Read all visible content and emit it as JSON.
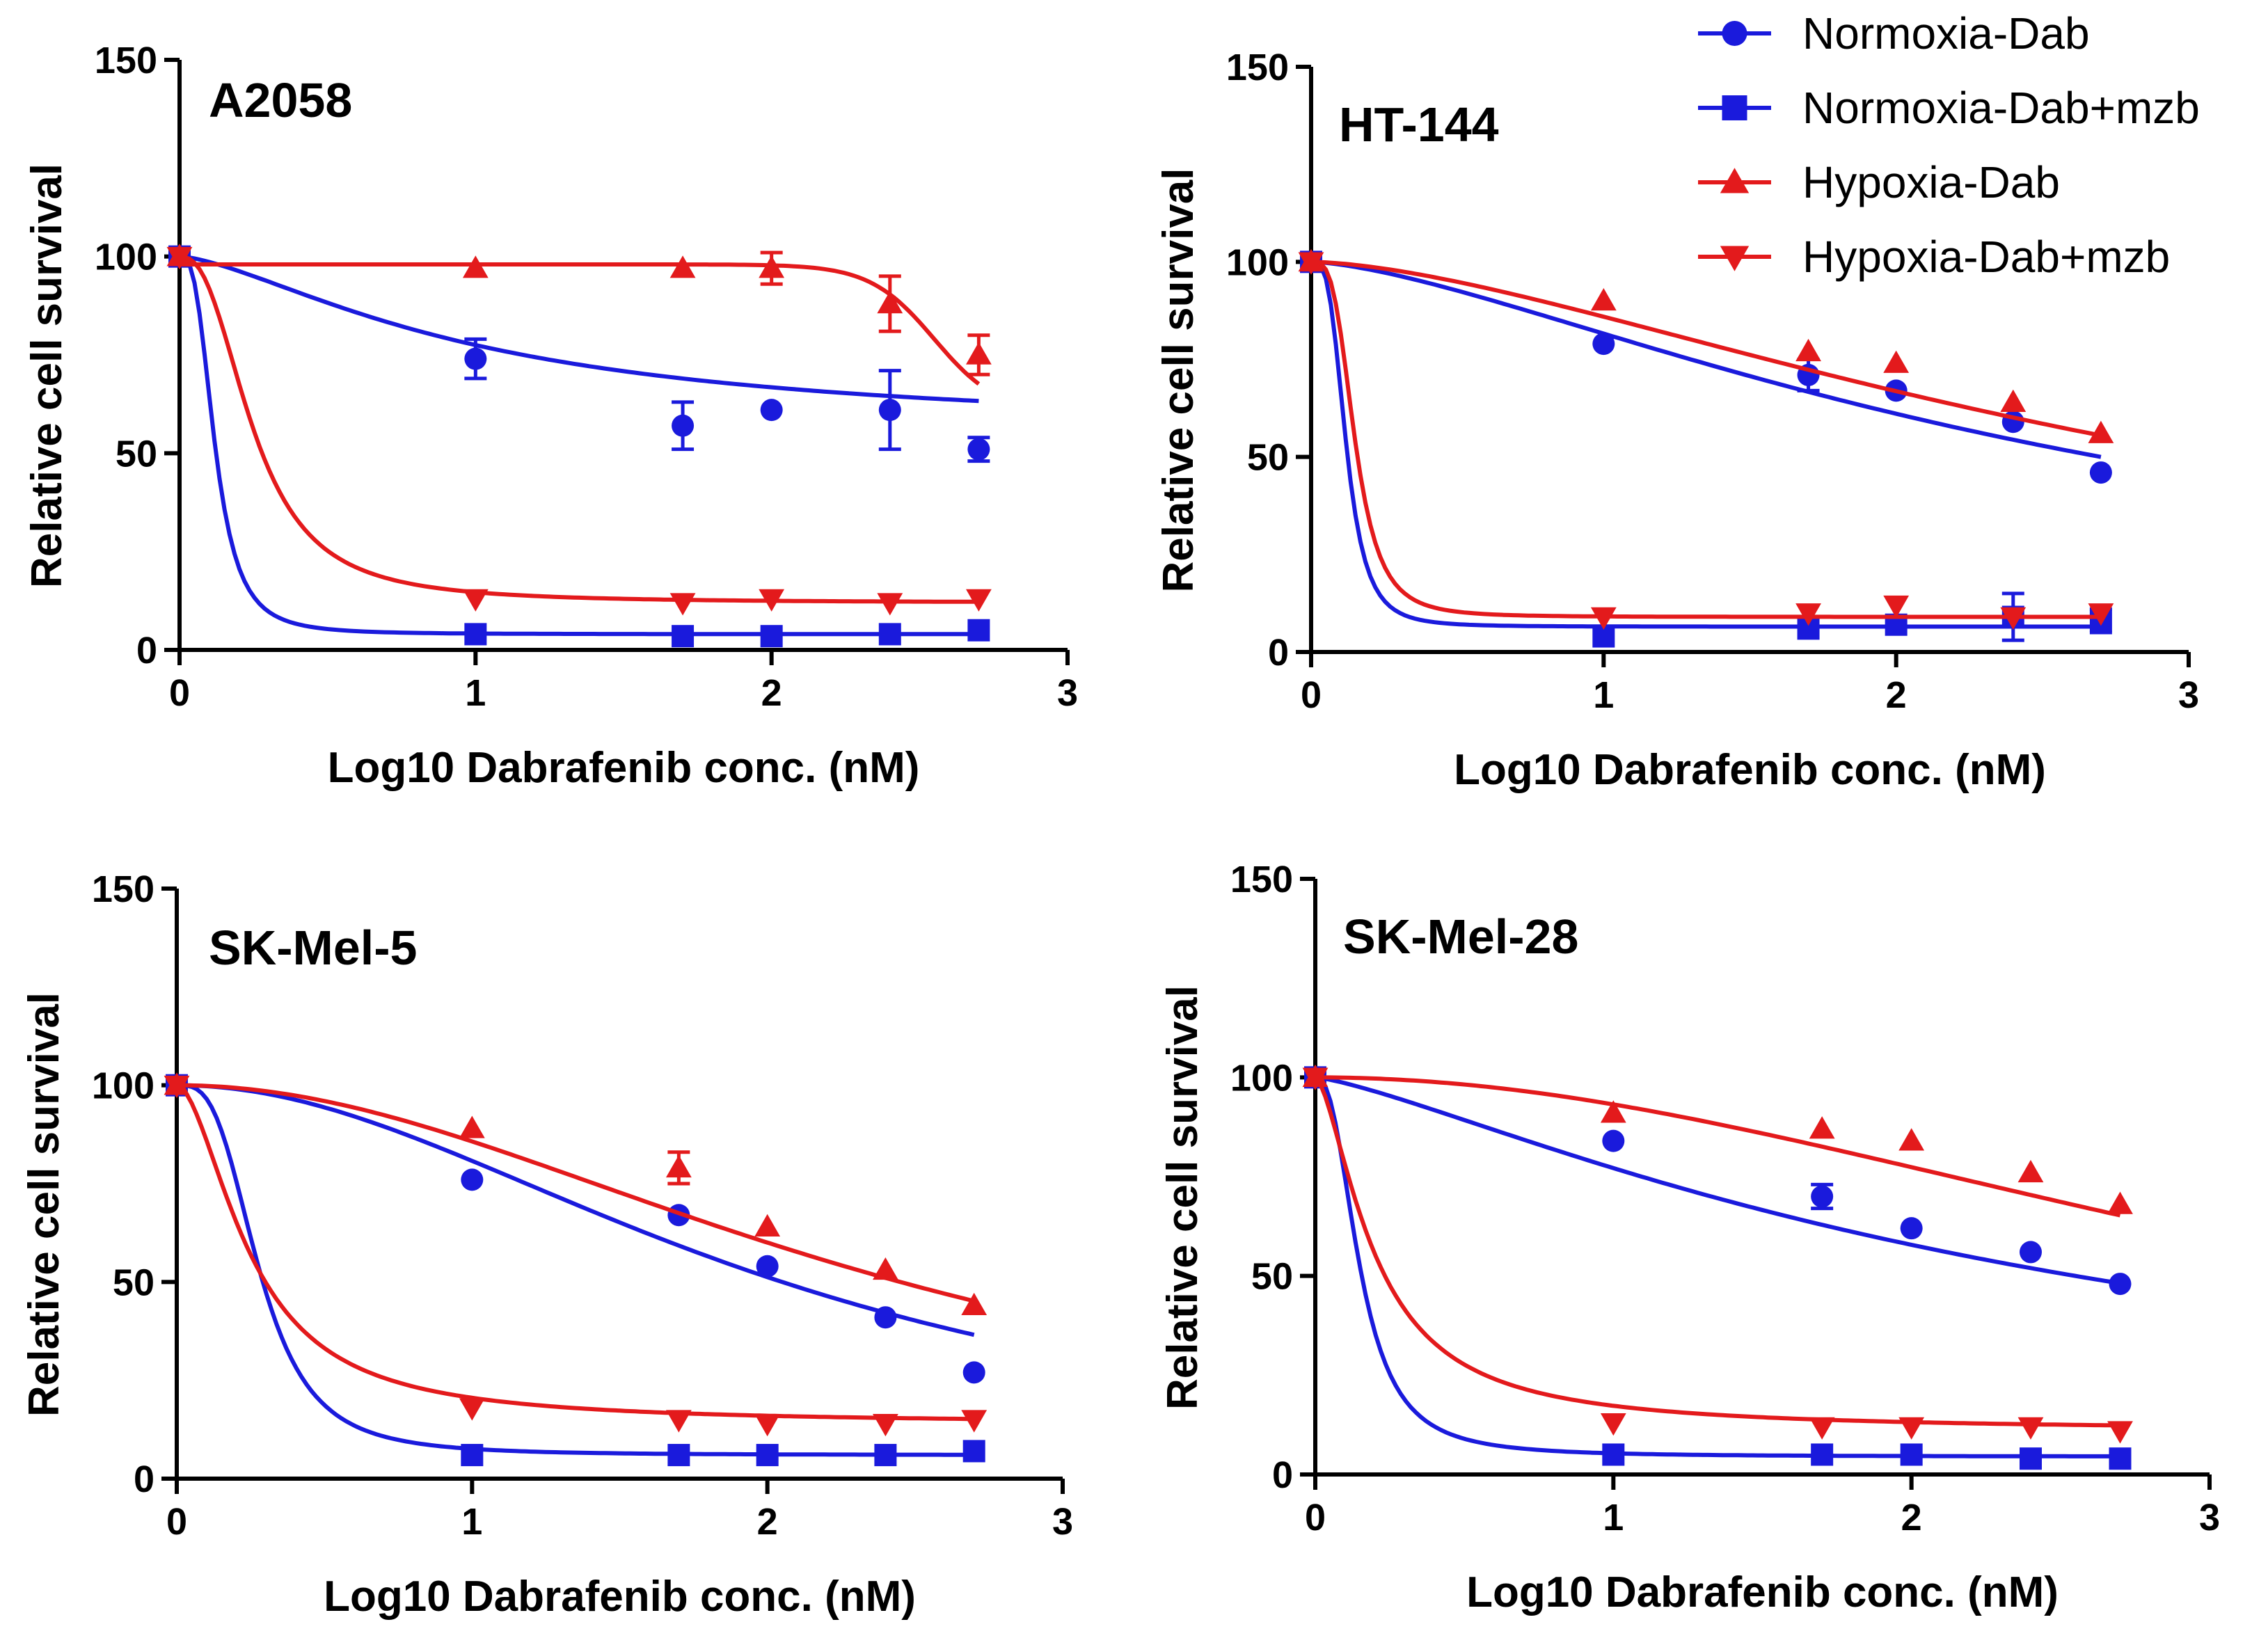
{
  "colors": {
    "normoxia": "#1a1adc",
    "hypoxia": "#e31a1c",
    "axis": "#000000"
  },
  "legend": [
    {
      "label": "Normoxia-Dab",
      "color": "#1a1adc",
      "marker": "circle"
    },
    {
      "label": "Normoxia-Dab+mzb",
      "color": "#1a1adc",
      "marker": "square"
    },
    {
      "label": "Hypoxia-Dab",
      "color": "#e31a1c",
      "marker": "triangle-up"
    },
    {
      "label": "Hypoxia-Dab+mzb",
      "color": "#e31a1c",
      "marker": "triangle-down"
    }
  ],
  "chart_data": [
    {
      "type": "scatter",
      "title": "A2058",
      "xlabel": "Log10 Dabrafenib conc. (nM)",
      "ylabel": "Relative cell survival",
      "xlim": [
        0,
        3
      ],
      "ylim": [
        0,
        150
      ],
      "xticks": [
        "0",
        "1",
        "2",
        "3"
      ],
      "yticks": [
        "0",
        "50",
        "100",
        "150"
      ],
      "x": [
        0,
        1,
        1.7,
        2,
        2.4,
        2.7
      ],
      "series": [
        {
          "name": "Normoxia-Dab",
          "marker": "circle",
          "values": [
            100,
            74,
            57,
            61,
            61,
            51
          ],
          "errors": [
            0,
            5,
            6,
            0,
            10,
            3
          ],
          "curve": {
            "bottom": 55,
            "x50": 1.0,
            "hill": 1.5
          }
        },
        {
          "name": "Normoxia-Dab+mzb",
          "marker": "square",
          "values": [
            100,
            4,
            3.5,
            3.5,
            4,
            5
          ],
          "errors": [
            0,
            0,
            0,
            0,
            0,
            0
          ],
          "curve": {
            "bottom": 4,
            "x50": 0.12,
            "hill": 3
          }
        },
        {
          "name": "Hypoxia-Dab",
          "marker": "triangle-up",
          "values": [
            100,
            97,
            97,
            97,
            88,
            75
          ],
          "errors": [
            0,
            0,
            0,
            4,
            7,
            5
          ],
          "curve": {
            "bottom": 60,
            "x50": 2.55,
            "hill": 4,
            "top": 98
          }
        },
        {
          "name": "Hypoxia-Dab+mzb",
          "marker": "triangle-down",
          "values": [
            100,
            13,
            12,
            13,
            12,
            13
          ],
          "errors": [
            0,
            0,
            0,
            0,
            0,
            0
          ],
          "curve": {
            "bottom": 12,
            "x50": 0.25,
            "hill": 2.5
          }
        }
      ]
    },
    {
      "type": "scatter",
      "title": "HT-144",
      "xlabel": "Log10 Dabrafenib conc. (nM)",
      "ylabel": "Relative cell survival",
      "xlim": [
        0,
        3
      ],
      "ylim": [
        0,
        150
      ],
      "xticks": [
        "0",
        "1",
        "2",
        "3"
      ],
      "yticks": [
        "0",
        "50",
        "100",
        "150"
      ],
      "x": [
        0,
        1,
        1.7,
        2,
        2.4,
        2.7
      ],
      "series": [
        {
          "name": "Normoxia-Dab",
          "marker": "circle",
          "values": [
            100,
            79,
            71,
            67,
            59,
            46
          ],
          "errors": [
            0,
            0,
            4,
            0,
            0,
            0
          ],
          "curve": {
            "bottom": 0,
            "x50": 2.7,
            "hill": 1.5
          }
        },
        {
          "name": "Normoxia-Dab+mzb",
          "marker": "square",
          "values": [
            100,
            4,
            6,
            7,
            9,
            8
          ],
          "errors": [
            0,
            0,
            0,
            0,
            6,
            3
          ],
          "curve": {
            "bottom": 6.5,
            "x50": 0.12,
            "hill": 3.5
          }
        },
        {
          "name": "Hypoxia-Dab",
          "marker": "triangle-up",
          "values": [
            100,
            90,
            77,
            74,
            64,
            56
          ],
          "errors": [
            0,
            0,
            0,
            0,
            0,
            0
          ],
          "curve": {
            "bottom": 0,
            "x50": 3.1,
            "hill": 1.6
          }
        },
        {
          "name": "Hypoxia-Dab+mzb",
          "marker": "triangle-down",
          "values": [
            100,
            9,
            10,
            12,
            9,
            10
          ],
          "errors": [
            0,
            0,
            0,
            0,
            0,
            0
          ],
          "curve": {
            "bottom": 9,
            "x50": 0.15,
            "hill": 3.5
          }
        }
      ]
    },
    {
      "type": "scatter",
      "title": "SK-Mel-5",
      "xlabel": "Log10 Dabrafenib conc. (nM)",
      "ylabel": "Relative cell survival",
      "xlim": [
        0,
        3
      ],
      "ylim": [
        0,
        150
      ],
      "xticks": [
        "0",
        "1",
        "2",
        "3"
      ],
      "yticks": [
        "0",
        "50",
        "100",
        "150"
      ],
      "x": [
        0,
        1,
        1.7,
        2,
        2.4,
        2.7
      ],
      "series": [
        {
          "name": "Normoxia-Dab",
          "marker": "circle",
          "values": [
            100,
            76,
            67,
            54,
            41,
            27
          ],
          "errors": [
            0,
            0,
            0,
            0,
            0,
            0
          ],
          "curve": {
            "bottom": 0,
            "x50": 2.05,
            "hill": 2
          }
        },
        {
          "name": "Normoxia-Dab+mzb",
          "marker": "square",
          "values": [
            100,
            6,
            6,
            6,
            6,
            7
          ],
          "errors": [
            0,
            0,
            0,
            0,
            0,
            0
          ],
          "curve": {
            "bottom": 6,
            "x50": 0.28,
            "hill": 3.2
          }
        },
        {
          "name": "Hypoxia-Dab",
          "marker": "triangle-up",
          "values": [
            100,
            89,
            79,
            64,
            53,
            44
          ],
          "errors": [
            0,
            0,
            4,
            0,
            0,
            0
          ],
          "curve": {
            "bottom": 0,
            "x50": 2.45,
            "hill": 2
          }
        },
        {
          "name": "Hypoxia-Dab+mzb",
          "marker": "triangle-down",
          "values": [
            100,
            18,
            15,
            14,
            14,
            15
          ],
          "errors": [
            0,
            0,
            0,
            0,
            0,
            0
          ],
          "curve": {
            "bottom": 14,
            "x50": 0.25,
            "hill": 1.8
          }
        }
      ]
    },
    {
      "type": "scatter",
      "title": "SK-Mel-28",
      "xlabel": "Log10 Dabrafenib conc. (nM)",
      "ylabel": "Relative cell survival",
      "xlim": [
        0,
        3
      ],
      "ylim": [
        0,
        150
      ],
      "xticks": [
        "0",
        "1",
        "2",
        "3"
      ],
      "yticks": [
        "0",
        "50",
        "100",
        "150"
      ],
      "x": [
        0,
        1,
        1.7,
        2,
        2.4,
        2.7
      ],
      "series": [
        {
          "name": "Normoxia-Dab",
          "marker": "circle",
          "values": [
            100,
            84,
            70,
            62,
            56,
            48
          ],
          "errors": [
            0,
            0,
            3,
            0,
            0,
            0
          ],
          "curve": {
            "bottom": 0,
            "x50": 2.55,
            "hill": 1.3
          }
        },
        {
          "name": "Normoxia-Dab+mzb",
          "marker": "square",
          "values": [
            100,
            5,
            5,
            5,
            4,
            4
          ],
          "errors": [
            0,
            0,
            0,
            0,
            0,
            0
          ],
          "curve": {
            "bottom": 4.5,
            "x50": 0.15,
            "hill": 2.5
          }
        },
        {
          "name": "Hypoxia-Dab",
          "marker": "triangle-up",
          "values": [
            100,
            91,
            87,
            84,
            76,
            68
          ],
          "errors": [
            0,
            0,
            0,
            0,
            0,
            0
          ],
          "curve": {
            "bottom": 0,
            "x50": 3.7,
            "hill": 2
          }
        },
        {
          "name": "Hypoxia-Dab+mzb",
          "marker": "triangle-down",
          "values": [
            100,
            13,
            12,
            12,
            12,
            11
          ],
          "errors": [
            0,
            0,
            0,
            0,
            0,
            0
          ],
          "curve": {
            "bottom": 11,
            "x50": 0.2,
            "hill": 1.6
          }
        }
      ]
    }
  ]
}
